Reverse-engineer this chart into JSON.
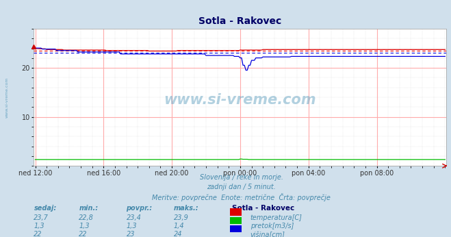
{
  "title": "Sotla - Rakovec",
  "bg_color": "#d0e0ec",
  "plot_bg_color": "#ffffff",
  "x_labels": [
    "ned 12:00",
    "ned 16:00",
    "ned 20:00",
    "pon 00:00",
    "pon 04:00",
    "pon 08:00"
  ],
  "x_ticks": [
    0,
    48,
    96,
    144,
    192,
    240
  ],
  "n_points": 289,
  "ylim": [
    0,
    28.0
  ],
  "yticks": [
    10,
    20
  ],
  "temp_avg": 23.4,
  "flow_avg": 1.3,
  "height_avg": 23.0,
  "temp_color": "#dd0000",
  "flow_color": "#00bb00",
  "height_color": "#0000dd",
  "grid_major_color": "#ffaaaa",
  "grid_minor_color": "#cccccc",
  "text_color": "#4488aa",
  "subtitle1": "Slovenija / reke in morje.",
  "subtitle2": "zadnji dan / 5 minut.",
  "subtitle3": "Meritve: povprečne  Enote: metrične  Črta: povprečje",
  "legend_title": "Sotla - Rakovec",
  "legend_items": [
    "temperatura[C]",
    "pretok[m3/s]",
    "višina[cm]"
  ],
  "legend_colors": [
    "#dd0000",
    "#00bb00",
    "#0000dd"
  ],
  "table_headers": [
    "sedaj:",
    "min.:",
    "povpr.:",
    "maks.:"
  ],
  "table_data": [
    [
      "23,7",
      "22,8",
      "23,4",
      "23,9"
    ],
    [
      "1,3",
      "1,3",
      "1,3",
      "1,4"
    ],
    [
      "22",
      "22",
      "23",
      "24"
    ]
  ],
  "watermark": "www.si-vreme.com"
}
